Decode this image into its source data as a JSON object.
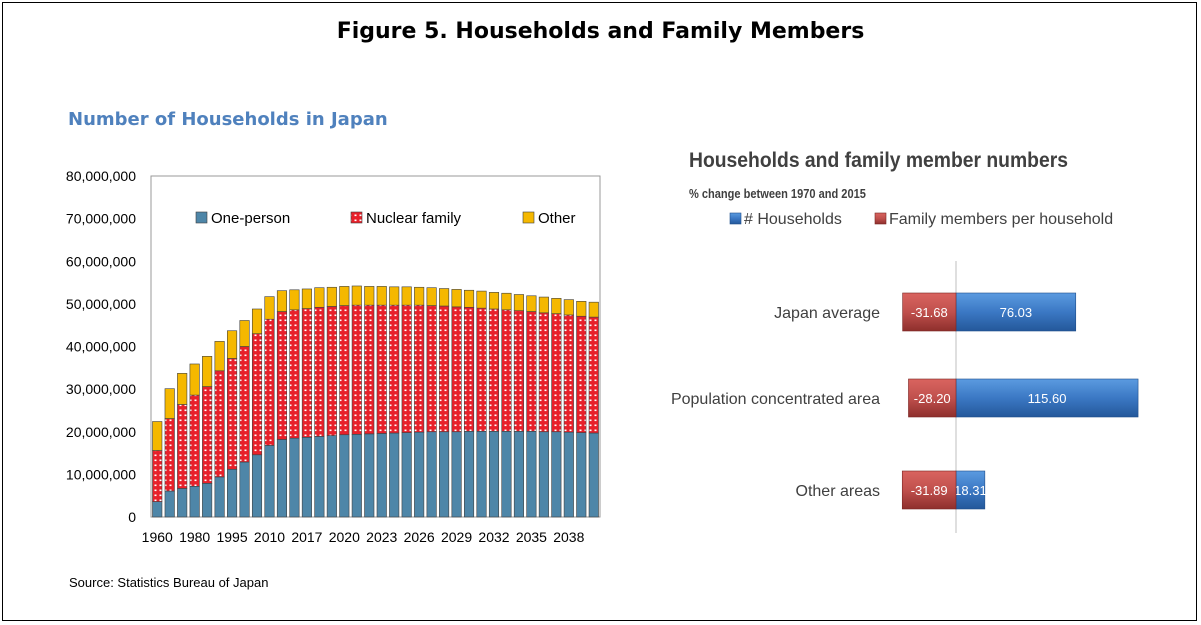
{
  "figure_title": "Figure 5. Households and Family Members",
  "source": "Source: Statistics Bureau of Japan",
  "colors": {
    "one_person": "#4e86a8",
    "nuclear": "#e8202a",
    "other": "#f5b800",
    "households": "#3b78c4",
    "family_members": "#c0504d"
  },
  "chart_data": [
    {
      "type": "bar",
      "stacked": true,
      "title": "Number of Households in Japan",
      "ylim": [
        0,
        80000000
      ],
      "yticks": [
        "0",
        "10,000,000",
        "20,000,000",
        "30,000,000",
        "40,000,000",
        "50,000,000",
        "60,000,000",
        "70,000,000",
        "80,000,000"
      ],
      "xtick_labels": [
        "1960",
        "1980",
        "1995",
        "2010",
        "2017",
        "2020",
        "2023",
        "2026",
        "2029",
        "2032",
        "2035",
        "2038"
      ],
      "legend_position": "top",
      "series": [
        {
          "name": "One-person",
          "values": [
            3600000,
            6100000,
            6700000,
            7200000,
            7900000,
            9400000,
            11200000,
            12900000,
            14600000,
            16800000,
            18200000,
            18500000,
            18700000,
            18900000,
            19100000,
            19300000,
            19400000,
            19500000,
            19600000,
            19700000,
            19800000,
            19900000,
            20000000,
            20000000,
            20000000,
            20100000,
            20100000,
            20100000,
            20100000,
            20100000,
            20100000,
            20000000,
            20000000,
            19900000,
            19800000,
            19700000
          ]
        },
        {
          "name": "Nuclear family",
          "values": [
            12000000,
            17000000,
            19700000,
            21400000,
            22700000,
            24900000,
            26000000,
            27100000,
            28400000,
            29600000,
            30000000,
            30100000,
            30200000,
            30300000,
            30300000,
            30300000,
            30300000,
            30200000,
            30100000,
            30000000,
            29900000,
            29800000,
            29600000,
            29500000,
            29300000,
            29100000,
            28900000,
            28700000,
            28500000,
            28300000,
            28100000,
            27900000,
            27700000,
            27500000,
            27300000,
            27200000
          ]
        },
        {
          "name": "Other",
          "values": [
            6800000,
            7000000,
            7300000,
            7300000,
            7100000,
            6900000,
            6500000,
            6100000,
            5800000,
            5300000,
            4900000,
            4700000,
            4600000,
            4600000,
            4500000,
            4500000,
            4500000,
            4400000,
            4400000,
            4300000,
            4300000,
            4200000,
            4200000,
            4100000,
            4100000,
            4000000,
            4000000,
            3900000,
            3900000,
            3800000,
            3700000,
            3700000,
            3600000,
            3600000,
            3500000,
            3500000
          ]
        }
      ]
    },
    {
      "type": "bar",
      "orientation": "horizontal",
      "title": "Households  and family member numbers",
      "subtitle": "% change between 1970 and 2015",
      "categories": [
        "Japan average",
        "Population concentrated area",
        "Other areas"
      ],
      "legend_position": "top",
      "series": [
        {
          "name": "# Households",
          "values": [
            76.03,
            115.6,
            18.31
          ],
          "labels": [
            "76.03",
            "115.60",
            "18.31"
          ]
        },
        {
          "name": "Family members per household",
          "values": [
            -31.68,
            -28.2,
            -31.89
          ],
          "labels": [
            "-31.68",
            "-28.20",
            "-31.89"
          ]
        }
      ]
    }
  ]
}
